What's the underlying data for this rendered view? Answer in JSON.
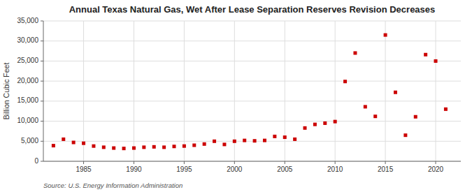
{
  "chart_data": {
    "type": "scatter",
    "title": "Annual Texas Natural Gas, Wet After Lease Separation Reserves Revision Decreases",
    "y_label": "Billion Cubic Feet",
    "source": "Source: U.S. Energy Information Administration",
    "x": [
      1982,
      1983,
      1984,
      1985,
      1986,
      1987,
      1988,
      1989,
      1990,
      1991,
      1992,
      1993,
      1994,
      1995,
      1996,
      1997,
      1998,
      1999,
      2000,
      2001,
      2002,
      2003,
      2004,
      2005,
      2006,
      2007,
      2008,
      2009,
      2010,
      2011,
      2012,
      2013,
      2014,
      2015,
      2016,
      2017,
      2018,
      2019,
      2020,
      2021
    ],
    "values": [
      3900,
      5500,
      4700,
      4500,
      3800,
      3500,
      3300,
      3200,
      3300,
      3500,
      3600,
      3500,
      3700,
      3800,
      4000,
      4300,
      5000,
      4200,
      5000,
      5200,
      5100,
      5200,
      6200,
      6000,
      5500,
      8300,
      9200,
      9500,
      9900,
      19900,
      27000,
      13600,
      11200,
      31500,
      17200,
      6500,
      11100,
      26600,
      25000,
      13000
    ],
    "color": "#CC0000",
    "marker": "square",
    "xlim": [
      1981,
      2022.5
    ],
    "ylim": [
      0,
      35000
    ],
    "xticks": [
      1985,
      1990,
      1995,
      2000,
      2005,
      2010,
      2015,
      2020
    ],
    "yticks": [
      0,
      {
        "value": 5000,
        "label": "5,000"
      },
      {
        "value": 10000,
        "label": "10,000"
      },
      {
        "value": 15000,
        "label": "15,000"
      },
      {
        "value": 20000,
        "label": "20,000"
      },
      {
        "value": 25000,
        "label": "25,000"
      },
      {
        "value": 30000,
        "label": "30,000"
      },
      {
        "value": 35000,
        "label": "35,000"
      }
    ],
    "grid": true
  }
}
